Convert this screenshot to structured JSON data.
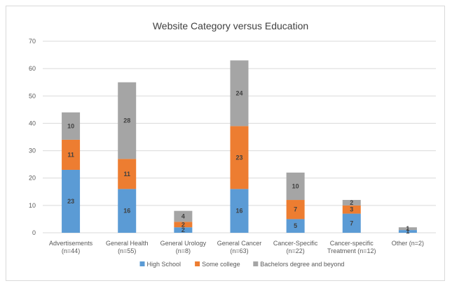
{
  "chart_data": {
    "type": "bar",
    "stacked": true,
    "title": "Website Category versus Education",
    "xlabel": "",
    "ylabel": "",
    "ylim": [
      0,
      70
    ],
    "yticks": [
      0,
      10,
      20,
      30,
      40,
      50,
      60,
      70
    ],
    "grid": true,
    "legend_position": "bottom",
    "categories": [
      [
        "Advertisements",
        "(n=44)"
      ],
      [
        "General Health",
        "(n=55)"
      ],
      [
        "General Urology",
        "(n=8)"
      ],
      [
        "General Cancer",
        "(n=63)"
      ],
      [
        "Cancer-Specific",
        "(n=22)"
      ],
      [
        "Cancer-specific",
        "Treatment (n=12)"
      ],
      [
        "Other (n=2)"
      ]
    ],
    "series": [
      {
        "name": "High School",
        "color": "#5b9bd5",
        "values": [
          23,
          16,
          2,
          16,
          5,
          7,
          1
        ]
      },
      {
        "name": "Some college",
        "color": "#ed7d31",
        "values": [
          11,
          11,
          2,
          23,
          7,
          3,
          0
        ]
      },
      {
        "name": "Bachelors degree and beyond",
        "color": "#a5a5a5",
        "values": [
          10,
          28,
          4,
          24,
          10,
          2,
          1
        ]
      }
    ]
  }
}
